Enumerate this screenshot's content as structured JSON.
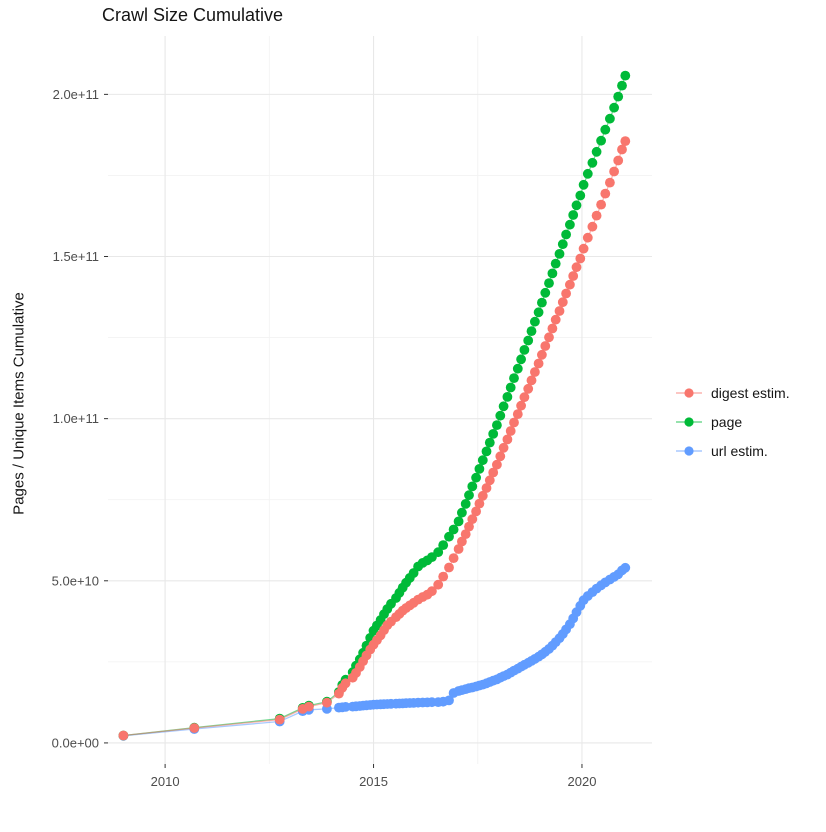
{
  "chart_data": {
    "type": "scatter-line",
    "title": "Crawl Size Cumulative",
    "xlabel": "",
    "ylabel": "Pages / Unique Items Cumulative",
    "legend_position": "right",
    "background": "#FFFFFF",
    "grid": {
      "major_color": "#E8E8E8",
      "minor_color": "#F3F3F3"
    },
    "axis_text_color": "#4D4D4D",
    "unit": "values are cumulative counts in billions (1e9)",
    "x_domain": [
      2008.63,
      2021.68
    ],
    "y_domain": [
      -6.5,
      218
    ],
    "x_ticks": [
      {
        "value": 2010,
        "label": "2010"
      },
      {
        "value": 2015,
        "label": "2015"
      },
      {
        "value": 2020,
        "label": "2020"
      }
    ],
    "x_minor": [
      2012.5,
      2017.5
    ],
    "y_ticks": [
      {
        "value": 0,
        "label": "0.0e+00"
      },
      {
        "value": 50,
        "label": "5.0e+10"
      },
      {
        "value": 100,
        "label": "1.0e+11"
      },
      {
        "value": 150,
        "label": "1.5e+11"
      },
      {
        "value": 200,
        "label": "2.0e+11"
      }
    ],
    "y_minor": [
      25,
      75,
      125,
      175
    ],
    "x": [
      2009.0,
      2010.7,
      2012.75,
      2013.3,
      2013.45,
      2013.88,
      2014.17,
      2014.25,
      2014.33,
      2014.5,
      2014.58,
      2014.67,
      2014.75,
      2014.83,
      2014.92,
      2015.0,
      2015.08,
      2015.17,
      2015.25,
      2015.33,
      2015.42,
      2015.54,
      2015.62,
      2015.7,
      2015.78,
      2015.87,
      2015.96,
      2016.07,
      2016.18,
      2016.29,
      2016.4,
      2016.55,
      2016.67,
      2016.81,
      2016.92,
      2017.04,
      2017.12,
      2017.21,
      2017.29,
      2017.37,
      2017.46,
      2017.54,
      2017.62,
      2017.71,
      2017.79,
      2017.87,
      2017.96,
      2018.04,
      2018.12,
      2018.21,
      2018.29,
      2018.37,
      2018.46,
      2018.54,
      2018.62,
      2018.71,
      2018.79,
      2018.87,
      2018.96,
      2019.04,
      2019.12,
      2019.21,
      2019.29,
      2019.37,
      2019.46,
      2019.54,
      2019.62,
      2019.71,
      2019.79,
      2019.87,
      2019.96,
      2020.04,
      2020.14,
      2020.25,
      2020.35,
      2020.46,
      2020.56,
      2020.67,
      2020.77,
      2020.87,
      2020.96,
      2021.04
    ],
    "series": [
      {
        "name": "digest estim.",
        "color": "#F8766D",
        "values": [
          2.3,
          4.6,
          7.2,
          10.5,
          11.2,
          12.4,
          15.2,
          17.0,
          18.4,
          20.1,
          21.6,
          23.4,
          25.2,
          27.0,
          28.8,
          30.3,
          31.7,
          33.2,
          34.8,
          36.3,
          37.4,
          38.8,
          39.8,
          40.8,
          41.6,
          42.4,
          43.2,
          44.2,
          45.0,
          45.7,
          46.8,
          48.8,
          51.3,
          54.1,
          57.0,
          59.8,
          62.1,
          64.4,
          66.7,
          69.0,
          71.4,
          73.8,
          76.2,
          78.6,
          81.0,
          83.4,
          85.8,
          88.4,
          91.0,
          93.6,
          96.2,
          98.8,
          101.4,
          104.0,
          106.6,
          109.2,
          111.8,
          114.4,
          117.0,
          119.7,
          122.4,
          125.1,
          127.8,
          130.5,
          133.2,
          135.9,
          138.6,
          141.3,
          144.0,
          146.7,
          149.4,
          152.4,
          155.8,
          159.2,
          162.6,
          166.0,
          169.4,
          172.8,
          176.2,
          179.6,
          183.0,
          185.6
        ]
      },
      {
        "name": "page",
        "color": "#00BA38",
        "values": [
          2.3,
          4.7,
          7.5,
          10.8,
          11.5,
          12.7,
          15.7,
          17.9,
          19.5,
          21.8,
          23.8,
          25.8,
          27.8,
          30.0,
          32.4,
          34.6,
          36.2,
          37.9,
          39.7,
          41.3,
          42.9,
          44.7,
          46.3,
          47.9,
          49.4,
          50.9,
          52.4,
          54.4,
          55.5,
          56.3,
          57.3,
          58.8,
          61.0,
          63.6,
          65.8,
          68.3,
          71.0,
          73.7,
          76.4,
          79.1,
          81.8,
          84.5,
          87.2,
          89.9,
          92.6,
          95.3,
          98.0,
          100.9,
          103.8,
          106.7,
          109.6,
          112.5,
          115.4,
          118.3,
          121.2,
          124.1,
          127.0,
          129.9,
          132.8,
          135.8,
          138.8,
          141.8,
          144.8,
          147.8,
          150.8,
          153.8,
          156.8,
          159.8,
          162.8,
          165.8,
          168.8,
          172.1,
          175.5,
          178.9,
          182.3,
          185.7,
          189.1,
          192.5,
          195.9,
          199.3,
          202.7,
          205.8
        ]
      },
      {
        "name": "url estim.",
        "color": "#619CFF",
        "values": [
          2.2,
          4.3,
          6.6,
          9.8,
          10.2,
          10.5,
          10.9,
          11.0,
          11.1,
          11.2,
          11.3,
          11.4,
          11.5,
          11.6,
          11.7,
          11.8,
          11.85,
          11.9,
          11.95,
          12.0,
          12.05,
          12.1,
          12.15,
          12.2,
          12.25,
          12.3,
          12.35,
          12.4,
          12.45,
          12.5,
          12.55,
          12.6,
          12.7,
          13.1,
          15.4,
          16.0,
          16.3,
          16.6,
          16.9,
          17.1,
          17.4,
          17.7,
          18.0,
          18.4,
          18.8,
          19.2,
          19.6,
          20.1,
          20.6,
          21.1,
          21.7,
          22.3,
          22.9,
          23.5,
          24.1,
          24.7,
          25.3,
          25.9,
          26.6,
          27.3,
          28.1,
          29.0,
          30.0,
          31.1,
          32.3,
          33.6,
          35.0,
          36.6,
          38.4,
          40.3,
          42.3,
          44.0,
          45.3,
          46.5,
          47.6,
          48.6,
          49.5,
          50.4,
          51.2,
          52.0,
          53.2,
          54.0
        ]
      }
    ]
  }
}
